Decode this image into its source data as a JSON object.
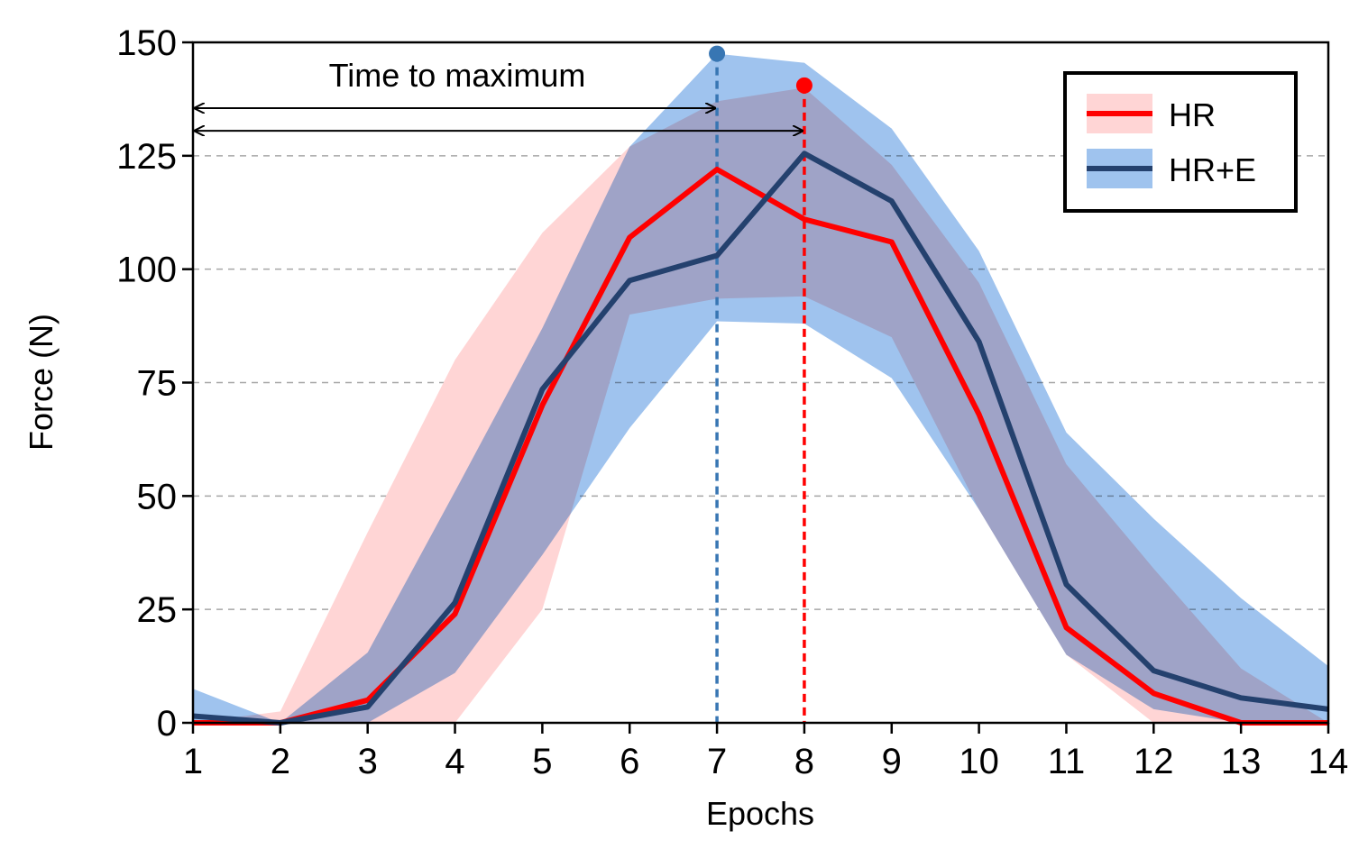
{
  "chart_data": {
    "type": "line",
    "title": "",
    "xlabel": "Epochs",
    "ylabel": "Force (N)",
    "xlim": [
      1,
      14
    ],
    "ylim": [
      0,
      150
    ],
    "x": [
      1,
      2,
      3,
      4,
      5,
      6,
      7,
      8,
      9,
      10,
      11,
      12,
      13,
      14
    ],
    "xticks": [
      1,
      2,
      3,
      4,
      5,
      6,
      7,
      8,
      9,
      10,
      11,
      12,
      13,
      14
    ],
    "yticks": [
      0,
      25,
      50,
      75,
      100,
      125,
      150
    ],
    "grid": "horizontal-dashed",
    "legend_position": "top-right",
    "series": [
      {
        "name": "HR",
        "color": "#ff0000",
        "band_color": "#ffd5d5",
        "values": [
          0,
          0,
          5,
          24,
          70,
          107,
          122,
          111,
          106,
          68,
          21,
          6.5,
          0,
          0
        ],
        "band_upper": [
          0,
          2.5,
          42,
          80,
          108,
          127,
          137,
          140,
          123,
          97,
          57,
          34,
          12,
          0
        ],
        "band_lower": [
          0,
          0,
          0,
          0,
          25,
          90,
          93.5,
          94,
          85,
          47,
          15,
          0,
          0,
          0
        ]
      },
      {
        "name": "HR+E",
        "color": "#24416e",
        "band_color": "#9fc3ee",
        "values": [
          1.5,
          0,
          3.5,
          26.5,
          73.5,
          97.5,
          103,
          125.5,
          115,
          84,
          30.5,
          11.5,
          5.5,
          3
        ],
        "band_upper": [
          7.5,
          0,
          15.5,
          51,
          87,
          127,
          147.5,
          145.5,
          131,
          104,
          64,
          45,
          27.5,
          12.5
        ],
        "band_lower": [
          0,
          0,
          0,
          11,
          37,
          65,
          88.5,
          88,
          76,
          47,
          15,
          3,
          0,
          0
        ]
      }
    ],
    "annotations": [
      {
        "text": "Time to maximum"
      },
      {
        "type": "peak-marker",
        "series": "HR+E",
        "x": 7,
        "y": 147.5,
        "color": "#3876b3"
      },
      {
        "type": "peak-marker",
        "series": "HR",
        "x": 8,
        "y": 140.5,
        "color": "#ff0000"
      },
      {
        "type": "double-arrow",
        "series": "HR+E",
        "from": 1,
        "to": 7,
        "y": 135.5
      },
      {
        "type": "double-arrow",
        "series": "HR",
        "from": 1,
        "to": 8,
        "y": 130.5
      }
    ]
  }
}
